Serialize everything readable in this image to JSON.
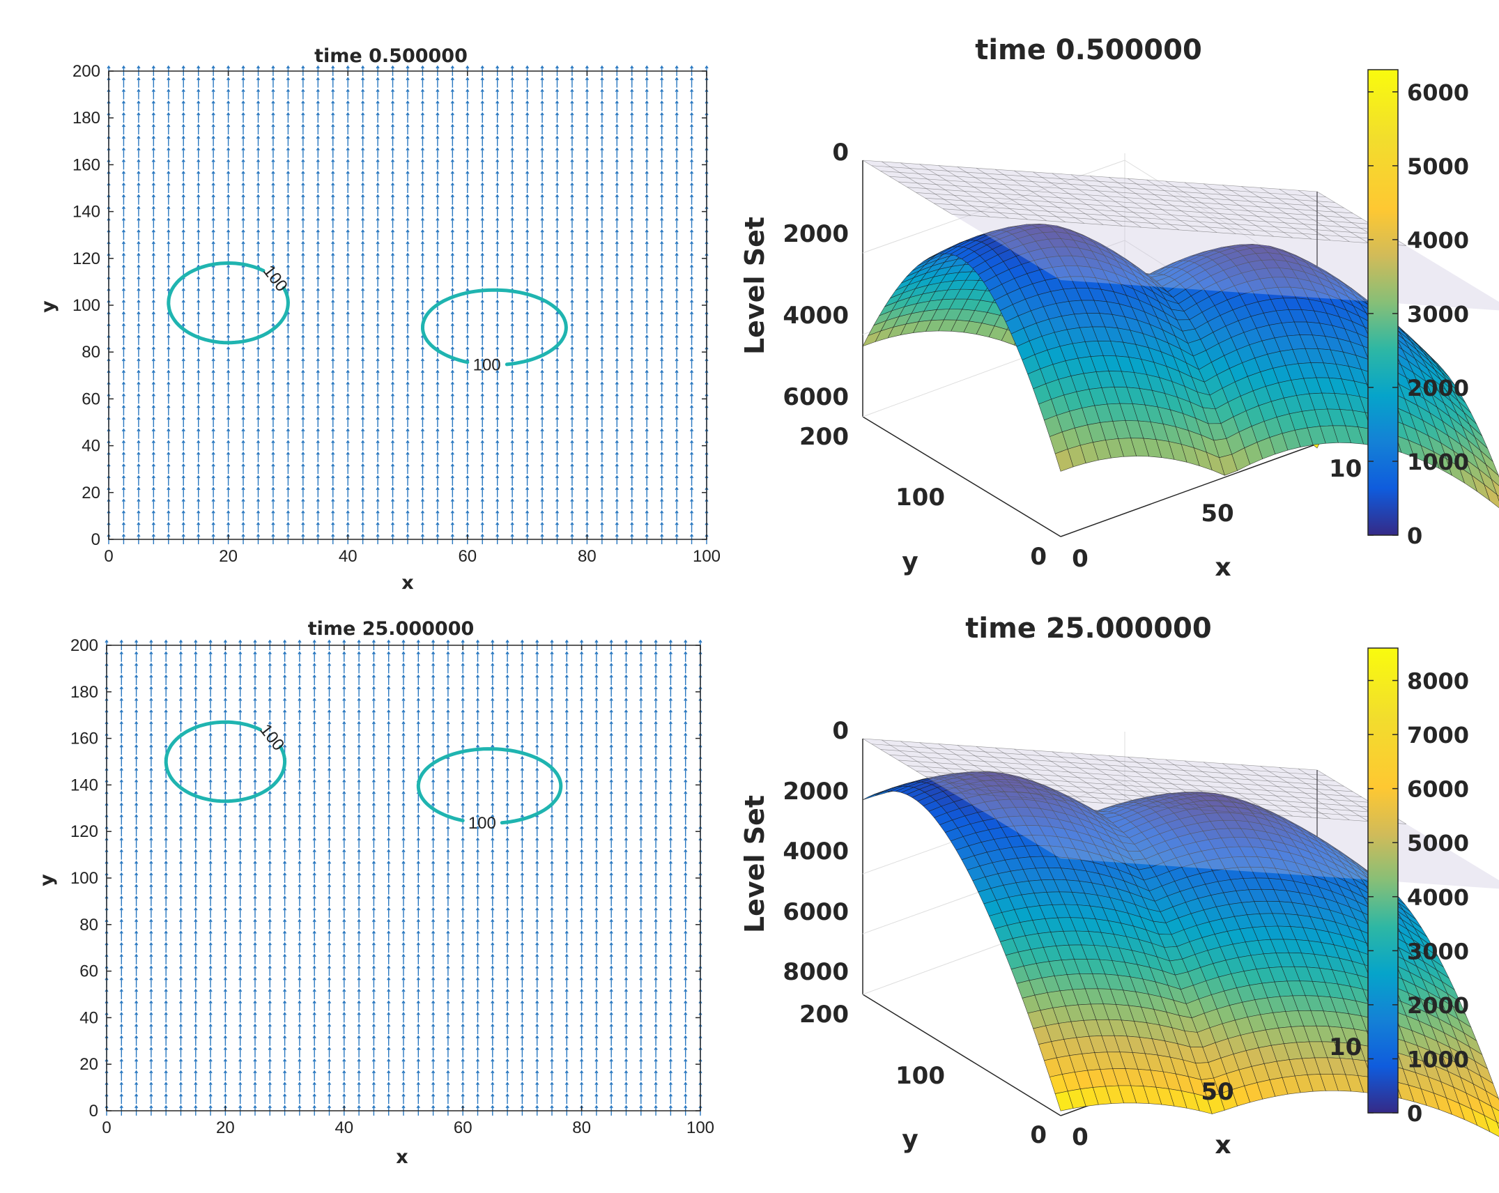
{
  "chart_data": [
    {
      "type": "quiver-contour",
      "title": "time 0.500000",
      "xlabel": "x",
      "ylabel": "y",
      "xlim": [
        0,
        100
      ],
      "ylim": [
        0,
        200
      ],
      "xticks": [
        "0",
        "20",
        "40",
        "60",
        "80",
        "100"
      ],
      "yticks": [
        "0",
        "20",
        "40",
        "60",
        "80",
        "100",
        "120",
        "140",
        "160",
        "180",
        "200"
      ],
      "contour_level": "100",
      "contours": [
        {
          "name": "left-bubble",
          "center": [
            20,
            101
          ],
          "radius": [
            10,
            17
          ],
          "label": "100"
        },
        {
          "name": "right-bubble",
          "center": [
            64.5,
            90.5
          ],
          "radius": [
            12,
            16
          ],
          "label": "100"
        }
      ],
      "field": {
        "nx": 41,
        "ny": 41,
        "direction": "upward",
        "color": "#2a78c0"
      },
      "contour_color": "#1fb4b0"
    },
    {
      "type": "surface",
      "title": "time 0.500000",
      "zlabel": "Level Set",
      "xlabel": "x",
      "ylabel": "y",
      "zticks": [
        "0",
        "2000",
        "4000",
        "6000"
      ],
      "zlim": [
        0,
        6000
      ],
      "yticks": [
        "200",
        "100",
        "0"
      ],
      "xticks": [
        "0",
        "50",
        "10"
      ],
      "colorbar": {
        "ticks": [
          "0",
          "1000",
          "2000",
          "3000",
          "4000",
          "5000",
          "6000"
        ],
        "range": [
          0,
          6300
        ]
      },
      "bubbles": [
        {
          "x": 20,
          "y": 101
        },
        {
          "x": 64.5,
          "y": 90.5
        }
      ],
      "zmax": 6000
    },
    {
      "type": "quiver-contour",
      "title": "time 25.000000",
      "xlabel": "x",
      "ylabel": "y",
      "xlim": [
        0,
        100
      ],
      "ylim": [
        0,
        200
      ],
      "xticks": [
        "0",
        "20",
        "40",
        "60",
        "80",
        "100"
      ],
      "yticks": [
        "0",
        "20",
        "40",
        "60",
        "80",
        "100",
        "120",
        "140",
        "160",
        "180",
        "200"
      ],
      "contour_level": "100",
      "contours": [
        {
          "name": "left-bubble",
          "center": [
            20,
            150
          ],
          "radius": [
            10,
            17
          ],
          "label": "100"
        },
        {
          "name": "right-bubble",
          "center": [
            64.5,
            139.5
          ],
          "radius": [
            12,
            16
          ],
          "label": "100"
        }
      ],
      "field": {
        "nx": 41,
        "ny": 41,
        "direction": "upward",
        "color": "#2a78c0"
      },
      "contour_color": "#1fb4b0"
    },
    {
      "type": "surface",
      "title": "time 25.000000",
      "zlabel": "Level Set",
      "xlabel": "x",
      "ylabel": "y",
      "zticks": [
        "0",
        "2000",
        "4000",
        "6000",
        "8000"
      ],
      "zlim": [
        0,
        8000
      ],
      "yticks": [
        "200",
        "100",
        "0"
      ],
      "xticks": [
        "0",
        "50",
        "10"
      ],
      "colorbar": {
        "ticks": [
          "0",
          "1000",
          "2000",
          "3000",
          "4000",
          "5000",
          "6000",
          "7000",
          "8000"
        ],
        "range": [
          0,
          8600
        ]
      },
      "bubbles": [
        {
          "x": 20,
          "y": 150
        },
        {
          "x": 64.5,
          "y": 139.5
        }
      ],
      "zmax": 8600
    }
  ]
}
